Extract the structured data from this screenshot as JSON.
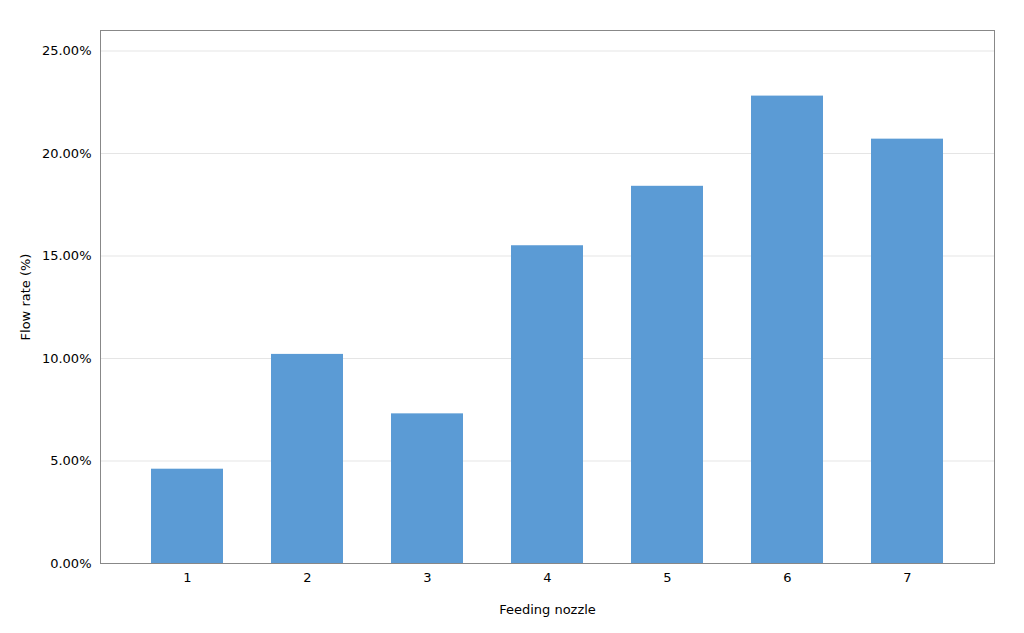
{
  "chart_data": {
    "type": "bar",
    "categories": [
      1,
      2,
      3,
      4,
      5,
      6,
      7
    ],
    "values": [
      0.046,
      0.102,
      0.073,
      0.155,
      0.184,
      0.228,
      0.207
    ],
    "color": "#5B9BD5",
    "xlabel": "Feeding nozzle",
    "ylabel": "Flow rate (%)",
    "ylim": [
      0,
      0.26
    ],
    "yticks": [
      {
        "value": 0.0,
        "label": "0.00%"
      },
      {
        "value": 0.05,
        "label": "5.00%"
      },
      {
        "value": 0.1,
        "label": "10.00%"
      },
      {
        "value": 0.15,
        "label": "15.00%"
      },
      {
        "value": 0.2,
        "label": "20.00%"
      },
      {
        "value": 0.25,
        "label": "25.00%"
      }
    ],
    "grid": true
  }
}
